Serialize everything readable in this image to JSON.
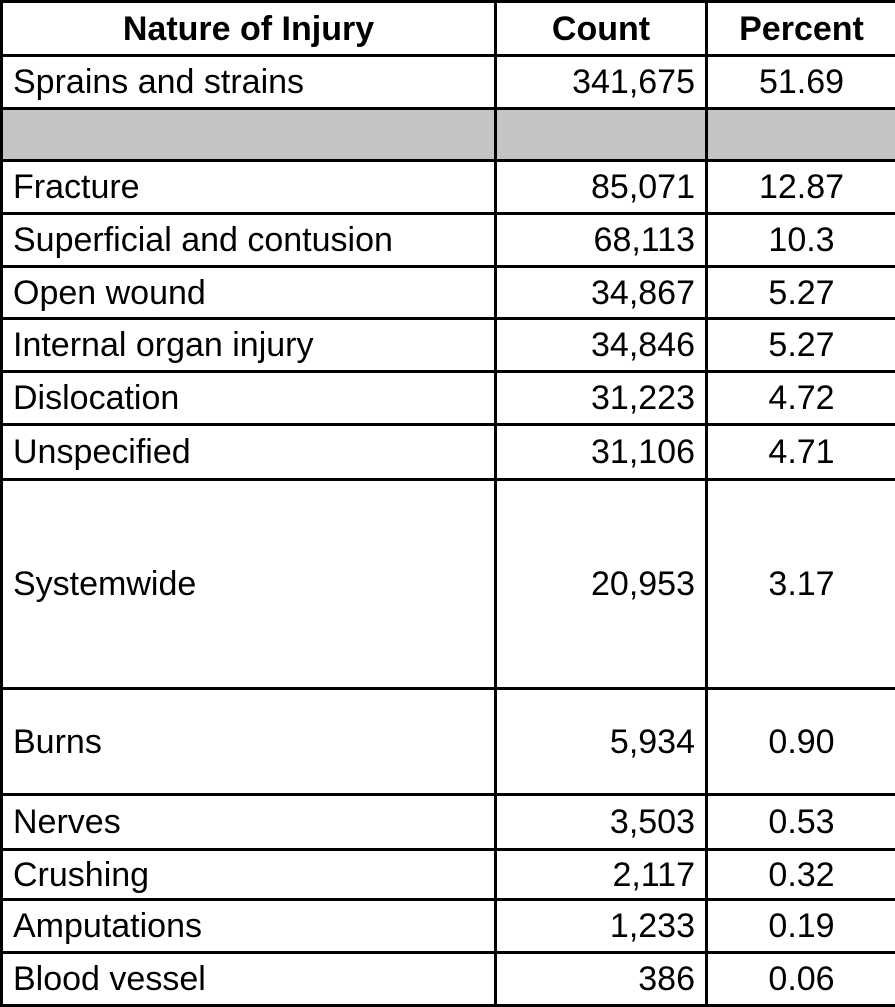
{
  "table": {
    "headers": {
      "nature": "Nature of Injury",
      "count": "Count",
      "percent": "Percent"
    },
    "rows": [
      {
        "nature": "Sprains and strains",
        "count": "341,675",
        "percent": "51.69"
      },
      {
        "nature": "",
        "count": "",
        "percent": ""
      },
      {
        "nature": "Fracture",
        "count": "85,071",
        "percent": "12.87"
      },
      {
        "nature": "Superficial and contusion",
        "count": "68,113",
        "percent": "10.3"
      },
      {
        "nature": "Open wound",
        "count": "34,867",
        "percent": "5.27"
      },
      {
        "nature": "Internal organ injury",
        "count": "34,846",
        "percent": "5.27"
      },
      {
        "nature": "Dislocation",
        "count": "31,223",
        "percent": "4.72"
      },
      {
        "nature": "Unspecified",
        "count": "31,106",
        "percent": "4.71"
      },
      {
        "nature": "Systemwide",
        "count": "20,953",
        "percent": "3.17"
      },
      {
        "nature": "Burns",
        "count": "5,934",
        "percent": "0.90"
      },
      {
        "nature": "Nerves",
        "count": "3,503",
        "percent": "0.53"
      },
      {
        "nature": "Crushing",
        "count": "2,117",
        "percent": "0.32"
      },
      {
        "nature": "Amputations",
        "count": "1,233",
        "percent": "0.19"
      },
      {
        "nature": "Blood vessel",
        "count": "386",
        "percent": "0.06"
      }
    ]
  }
}
